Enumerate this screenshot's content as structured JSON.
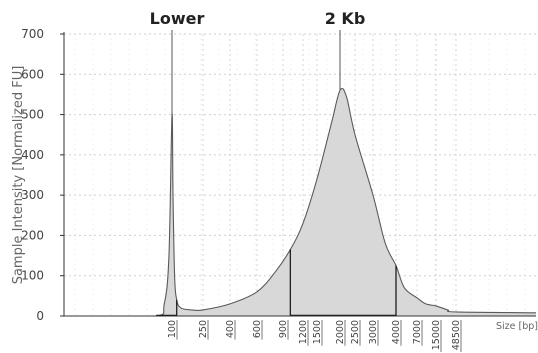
{
  "chart_data": {
    "type": "area",
    "ylabel": "Sample Intensity [Normalized FU]",
    "xlabel": "Size [bp]",
    "ylim": [
      0,
      700
    ],
    "yticks": [
      0,
      100,
      200,
      300,
      400,
      500,
      600,
      700
    ],
    "xticks": [
      "100",
      "250",
      "400",
      "600",
      "900",
      "1200",
      "1500",
      "2000",
      "2500",
      "3000",
      "4000",
      "7000",
      "15000",
      "48500"
    ],
    "grid": true,
    "peaks": [
      {
        "label": "Lower",
        "size": "100",
        "intensity": 500
      },
      {
        "label": "2 Kb",
        "size": "2000",
        "intensity": 560
      }
    ],
    "region_boundaries": [
      "1000",
      "4000"
    ],
    "series": [
      {
        "values": [
          [
            60,
            0
          ],
          [
            90,
            0
          ],
          [
            95,
            30
          ],
          [
            98,
            150
          ],
          [
            100,
            500
          ],
          [
            103,
            300
          ],
          [
            108,
            100
          ],
          [
            115,
            40
          ],
          [
            130,
            20
          ],
          [
            180,
            15
          ],
          [
            250,
            15
          ],
          [
            400,
            30
          ],
          [
            600,
            60
          ],
          [
            800,
            110
          ],
          [
            1000,
            165
          ],
          [
            1200,
            230
          ],
          [
            1500,
            340
          ],
          [
            1800,
            480
          ],
          [
            2000,
            560
          ],
          [
            2200,
            545
          ],
          [
            2500,
            450
          ],
          [
            3000,
            300
          ],
          [
            3500,
            180
          ],
          [
            4000,
            125
          ],
          [
            5000,
            70
          ],
          [
            7000,
            45
          ],
          [
            10000,
            30
          ],
          [
            15000,
            25
          ],
          [
            30000,
            15
          ],
          [
            48500,
            10
          ],
          [
            60000,
            8
          ]
        ]
      }
    ]
  }
}
